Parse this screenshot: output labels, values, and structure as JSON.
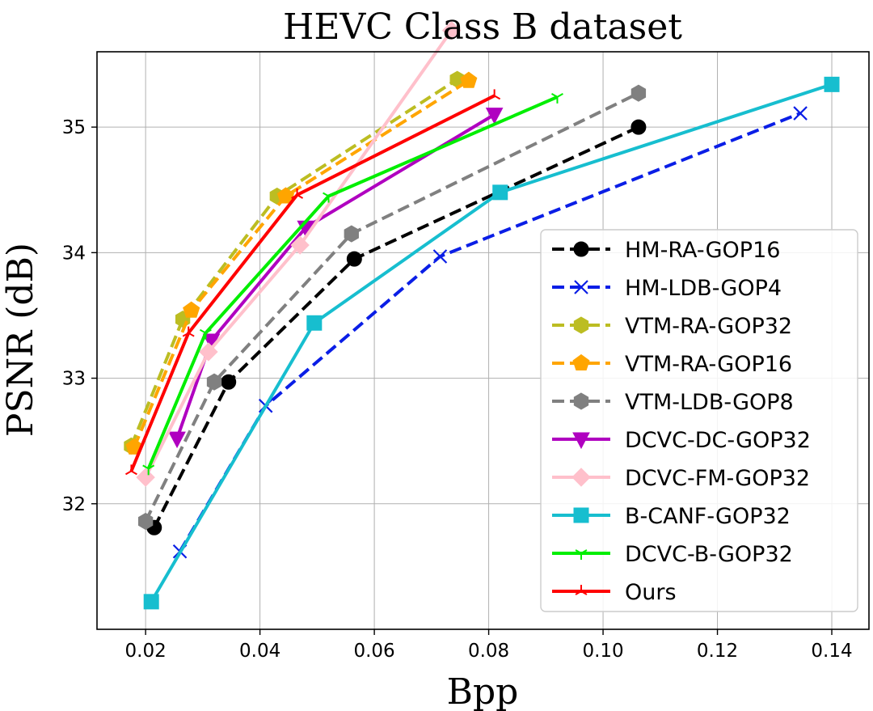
{
  "chart_data": {
    "type": "line",
    "title": "HEVC Class B dataset",
    "xlabel": "Bpp",
    "ylabel": "PSNR (dB)",
    "xlim": [
      0.0115,
      0.1465
    ],
    "ylim": [
      31.0,
      35.6
    ],
    "xticks": [
      0.02,
      0.04,
      0.06,
      0.08,
      0.1,
      0.12,
      0.14
    ],
    "xtick_labels": [
      "0.02",
      "0.04",
      "0.06",
      "0.08",
      "0.10",
      "0.12",
      "0.14"
    ],
    "yticks": [
      32,
      33,
      34,
      35
    ],
    "ytick_labels": [
      "32",
      "33",
      "34",
      "35"
    ],
    "grid": true,
    "legend_position": "lower-right",
    "series": [
      {
        "name": "HM-RA-GOP16",
        "color": "#000000",
        "dash": "dashed",
        "marker": "circle",
        "x": [
          0.0215,
          0.0345,
          0.0565,
          0.1062
        ],
        "y": [
          31.81,
          32.97,
          33.95,
          35.0
        ]
      },
      {
        "name": "HM-LDB-GOP4",
        "color": "#0a1ee6",
        "dash": "dashed",
        "marker": "x",
        "x": [
          0.026,
          0.041,
          0.0715,
          0.1345
        ],
        "y": [
          31.62,
          32.78,
          33.97,
          35.11
        ]
      },
      {
        "name": "VTM-RA-GOP32",
        "color": "#bcbd22",
        "dash": "dashed",
        "marker": "hexagon",
        "x": [
          0.0175,
          0.0265,
          0.043,
          0.0745
        ],
        "y": [
          32.46,
          33.47,
          34.45,
          35.38
        ]
      },
      {
        "name": "VTM-RA-GOP16",
        "color": "#ffa500",
        "dash": "dashed",
        "marker": "pentagon",
        "x": [
          0.018,
          0.028,
          0.0445,
          0.0765
        ],
        "y": [
          32.45,
          33.54,
          34.45,
          35.37
        ]
      },
      {
        "name": "VTM-LDB-GOP8",
        "color": "#808080",
        "dash": "dashed",
        "marker": "hexagon",
        "x": [
          0.02,
          0.032,
          0.056,
          0.1062
        ],
        "y": [
          31.86,
          32.97,
          34.15,
          35.27
        ]
      },
      {
        "name": "DCVC-DC-GOP32",
        "color": "#b000c0",
        "dash": "solid",
        "marker": "triangle-down",
        "x": [
          0.0255,
          0.0315,
          0.048,
          0.081
        ],
        "y": [
          32.52,
          33.3,
          34.2,
          35.1
        ]
      },
      {
        "name": "DCVC-FM-GOP32",
        "color": "#ffc0cb",
        "dash": "solid",
        "marker": "diamond",
        "x": [
          0.02,
          0.031,
          0.047,
          0.0735
        ],
        "y": [
          32.21,
          33.21,
          34.06,
          35.77
        ]
      },
      {
        "name": "B-CANF-GOP32",
        "color": "#17becf",
        "dash": "solid",
        "marker": "square",
        "x": [
          0.021,
          0.0495,
          0.082,
          0.14
        ],
        "y": [
          31.22,
          33.44,
          34.48,
          35.34
        ]
      },
      {
        "name": "DCVC-B-GOP32",
        "color": "#00ee00",
        "dash": "solid",
        "marker": "tri-down",
        "x": [
          0.0205,
          0.0305,
          0.052,
          0.092
        ],
        "y": [
          32.28,
          33.36,
          34.45,
          35.24
        ]
      },
      {
        "name": "Ours",
        "color": "#ff0000",
        "dash": "solid",
        "marker": "tri-up",
        "x": [
          0.0175,
          0.0275,
          0.0465,
          0.081
        ],
        "y": [
          32.26,
          33.36,
          34.46,
          35.25
        ]
      }
    ]
  }
}
